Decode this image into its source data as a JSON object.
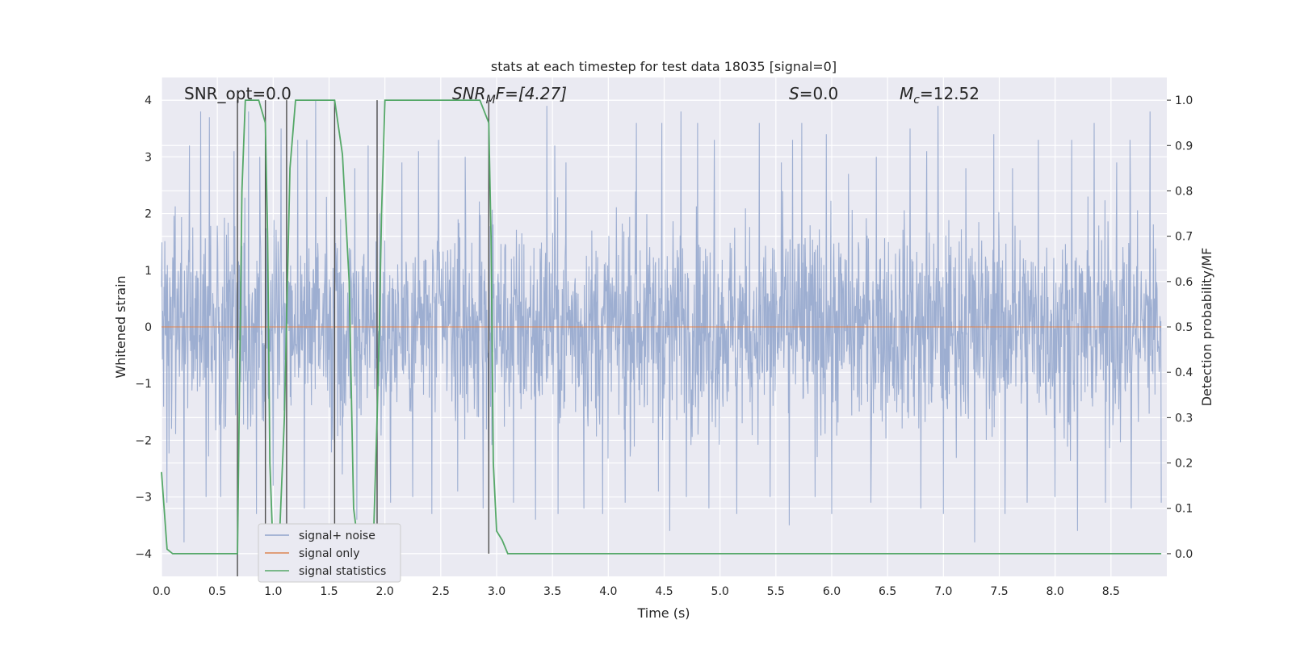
{
  "chart_data": {
    "type": "line",
    "title": "stats at each timestep for test data 18035 [signal=0]",
    "xlabel": "Time (s)",
    "ylabel_left": "Whitened strain",
    "ylabel_right": "Detection probability/MF",
    "xlim": [
      0.0,
      9.0
    ],
    "ylim_left": [
      -4.4,
      4.4
    ],
    "ylim_right": [
      -0.05,
      1.05
    ],
    "x_ticks": [
      "0.0",
      "0.5",
      "1.0",
      "1.5",
      "2.0",
      "2.5",
      "3.0",
      "3.5",
      "4.0",
      "4.5",
      "5.0",
      "5.5",
      "6.0",
      "6.5",
      "7.0",
      "7.5",
      "8.0",
      "8.5"
    ],
    "y_left_ticks": [
      "−4",
      "−3",
      "−2",
      "−1",
      "0",
      "1",
      "2",
      "3",
      "4"
    ],
    "y_right_ticks": [
      "0.0",
      "0.1",
      "0.2",
      "0.3",
      "0.4",
      "0.5",
      "0.6",
      "0.7",
      "0.8",
      "0.9",
      "1.0"
    ],
    "grid": true,
    "legend_position": "lower-left",
    "annotations": {
      "snr_opt": "SNR_opt=0.0",
      "snr_mf_base": "SNR",
      "snr_mf_sub": "M",
      "snr_mf_rest": "F=[4.27]",
      "s_italic": "S",
      "s_rest": "=0.0",
      "mc_base": "M",
      "mc_sub": "c",
      "mc_rest": "=12.52"
    },
    "series": [
      {
        "name": "signal+ noise",
        "color": "#8fa3cb",
        "description": "whitened strain noise trace, amplitude mostly within ±2.3, peaks near ±4",
        "peak_times": [
          0.2,
          0.25,
          0.35,
          0.43,
          0.53,
          0.65,
          0.78,
          0.88,
          1.07,
          1.22,
          1.3,
          1.38,
          1.55,
          1.73,
          1.85,
          2.05,
          2.15,
          2.3,
          2.48,
          2.72,
          3.15,
          3.35,
          3.45,
          3.52,
          3.62,
          3.78,
          3.95,
          4.25,
          4.48,
          4.65,
          4.8,
          4.95,
          5.35,
          5.55,
          5.65,
          5.73,
          5.95,
          6.15,
          6.4,
          6.7,
          6.85,
          6.95,
          7.2,
          7.45,
          7.62,
          7.85,
          8.0,
          8.15,
          8.35,
          8.55,
          8.67,
          8.85
        ],
        "peak_values": [
          4.0,
          3.2,
          3.8,
          3.7,
          3.1,
          3.1,
          3.8,
          3.0,
          3.5,
          3.3,
          3.3,
          4.0,
          3.4,
          2.8,
          3.2,
          3.3,
          2.9,
          3.1,
          3.3,
          3.0,
          3.3,
          3.9,
          3.9,
          3.2,
          2.9,
          3.4,
          3.1,
          3.6,
          3.6,
          3.8,
          3.6,
          3.3,
          3.6,
          2.9,
          3.3,
          3.6,
          3.4,
          2.7,
          3.0,
          3.5,
          3.1,
          3.9,
          2.8,
          3.4,
          2.8,
          3.3,
          2.8,
          3.3,
          3.6,
          2.9,
          3.3,
          3.8
        ],
        "trough_times": [
          0.05,
          0.2,
          0.4,
          0.53,
          0.85,
          1.0,
          1.28,
          1.62,
          1.75,
          2.05,
          2.25,
          2.42,
          2.65,
          2.88,
          3.15,
          3.35,
          3.55,
          3.78,
          3.95,
          4.15,
          4.45,
          4.55,
          4.7,
          4.9,
          5.15,
          5.45,
          5.62,
          5.85,
          6.0,
          6.35,
          6.8,
          7.0,
          7.28,
          7.55,
          7.75,
          8.0,
          8.2,
          8.45,
          8.68,
          8.95
        ],
        "trough_values": [
          -3.1,
          -3.8,
          -3.0,
          -3.0,
          -3.3,
          -2.8,
          -3.2,
          -2.6,
          -3.4,
          -3.1,
          -3.0,
          -3.3,
          -2.9,
          -3.2,
          -3.1,
          -3.4,
          -3.3,
          -3.2,
          -3.3,
          -3.1,
          -2.9,
          -3.6,
          -3.0,
          -3.2,
          -3.3,
          -3.0,
          -3.5,
          -3.0,
          -3.3,
          -3.1,
          -3.2,
          -3.3,
          -3.8,
          -3.3,
          -3.1,
          -3.0,
          -3.6,
          -3.1,
          -3.2,
          -3.1
        ]
      },
      {
        "name": "signal only",
        "color": "#dd8452",
        "x": [
          0.0,
          8.95
        ],
        "y": [
          0.0,
          0.0
        ]
      },
      {
        "name": "signal statistics",
        "color": "#55a868",
        "axis": "right",
        "x": [
          0.0,
          0.05,
          0.1,
          0.68,
          0.7,
          0.72,
          0.75,
          0.87,
          0.93,
          0.95,
          0.97,
          1.0,
          1.02,
          1.05,
          1.1,
          1.15,
          1.2,
          1.55,
          1.62,
          1.68,
          1.72,
          1.77,
          1.8,
          1.83,
          1.87,
          1.9,
          1.93,
          1.95,
          1.97,
          2.0,
          2.85,
          2.93,
          2.95,
          2.97,
          3.0,
          3.05,
          3.1,
          8.95
        ],
        "y": [
          0.18,
          0.01,
          0.0,
          0.0,
          0.4,
          0.8,
          1.0,
          1.0,
          0.95,
          0.7,
          0.2,
          0.0,
          0.0,
          0.0,
          0.3,
          0.85,
          1.0,
          1.0,
          0.88,
          0.6,
          0.1,
          0.0,
          0.0,
          0.0,
          0.0,
          0.05,
          0.3,
          0.5,
          0.75,
          1.0,
          1.0,
          0.95,
          0.7,
          0.2,
          0.05,
          0.03,
          0.0,
          0.0
        ]
      }
    ],
    "vertical_markers": [
      {
        "x": 0.68,
        "y_from": -0.05,
        "y_to": 1.0
      },
      {
        "x": 0.93,
        "y_from": 0.0,
        "y_to": 1.0
      },
      {
        "x": 1.12,
        "y_from": 0.0,
        "y_to": 1.0
      },
      {
        "x": 1.55,
        "y_from": 0.0,
        "y_to": 1.0
      },
      {
        "x": 1.93,
        "y_from": 0.0,
        "y_to": 1.0
      },
      {
        "x": 2.93,
        "y_from": 0.0,
        "y_to": 1.0
      }
    ],
    "colors": {
      "plot_background": "#eaeaf2",
      "grid": "#ffffff",
      "marker_lines": "#4d4d4d"
    }
  }
}
